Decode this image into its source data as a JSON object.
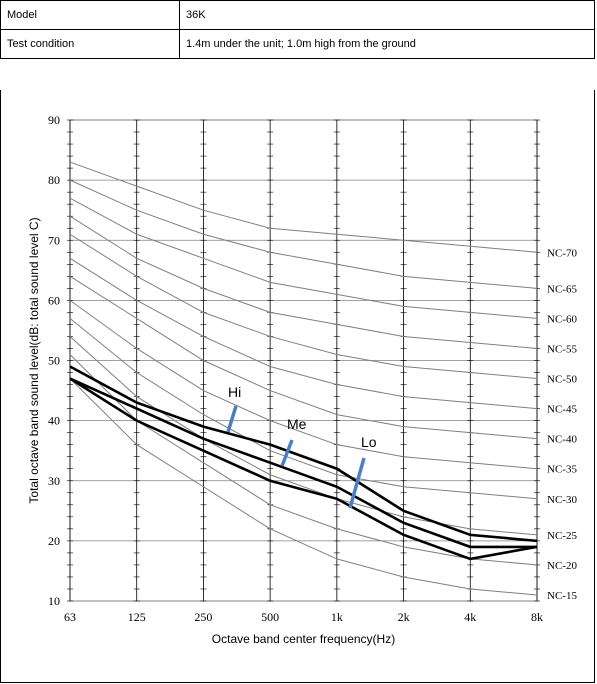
{
  "spec": {
    "model_label": "Model",
    "model_value": "36K",
    "condition_label": "Test condition",
    "condition_value": "1.4m under the unit; 1.0m high from the ground"
  },
  "chart_data": {
    "type": "line",
    "xlabel": "Octave band center frequency(Hz)",
    "ylabel": "Total octave band sound level(dB: total sound level C)",
    "categories": [
      "63",
      "125",
      "250",
      "500",
      "1k",
      "2k",
      "4k",
      "8k"
    ],
    "ylim": [
      10,
      90
    ],
    "yticks": [
      10,
      20,
      30,
      40,
      50,
      60,
      70,
      80,
      90
    ],
    "grid": true,
    "nc_curves": [
      {
        "name": "NC-70",
        "values": [
          83,
          79,
          75,
          72,
          71,
          70,
          69,
          68
        ]
      },
      {
        "name": "NC-65",
        "values": [
          80,
          75,
          71,
          68,
          66,
          64,
          63,
          62
        ]
      },
      {
        "name": "NC-60",
        "values": [
          77,
          71,
          67,
          63,
          61,
          59,
          58,
          57
        ]
      },
      {
        "name": "NC-55",
        "values": [
          74,
          67,
          62,
          58,
          56,
          54,
          53,
          52
        ]
      },
      {
        "name": "NC-50",
        "values": [
          71,
          64,
          58,
          54,
          51,
          49,
          48,
          47
        ]
      },
      {
        "name": "NC-45",
        "values": [
          67,
          60,
          54,
          49,
          46,
          44,
          43,
          42
        ]
      },
      {
        "name": "NC-40",
        "values": [
          64,
          57,
          50,
          45,
          41,
          39,
          38,
          37
        ]
      },
      {
        "name": "NC-35",
        "values": [
          60,
          52,
          45,
          40,
          36,
          34,
          33,
          32
        ]
      },
      {
        "name": "NC-30",
        "values": [
          57,
          48,
          41,
          35,
          31,
          29,
          28,
          27
        ]
      },
      {
        "name": "NC-25",
        "values": [
          54,
          44,
          37,
          31,
          27,
          24,
          22,
          21
        ]
      },
      {
        "name": "NC-20",
        "values": [
          51,
          40,
          33,
          26,
          22,
          19,
          17,
          16
        ]
      },
      {
        "name": "NC-15",
        "values": [
          47,
          36,
          29,
          22,
          17,
          14,
          12,
          11
        ]
      }
    ],
    "series": [
      {
        "name": "Hi",
        "values": [
          49,
          43,
          39,
          36,
          32,
          25,
          21,
          20
        ]
      },
      {
        "name": "Me",
        "values": [
          47,
          42,
          37,
          33,
          29,
          23,
          19,
          19
        ]
      },
      {
        "name": "Lo",
        "values": [
          47,
          40,
          35,
          30,
          27,
          21,
          17,
          19
        ]
      }
    ],
    "annotations": [
      "Hi",
      "Me",
      "Lo"
    ],
    "colors": {
      "grid": "#808080",
      "nc_line": "#7f7f7f",
      "series_line": "#000000",
      "pointer": "#4a7fc1"
    }
  }
}
